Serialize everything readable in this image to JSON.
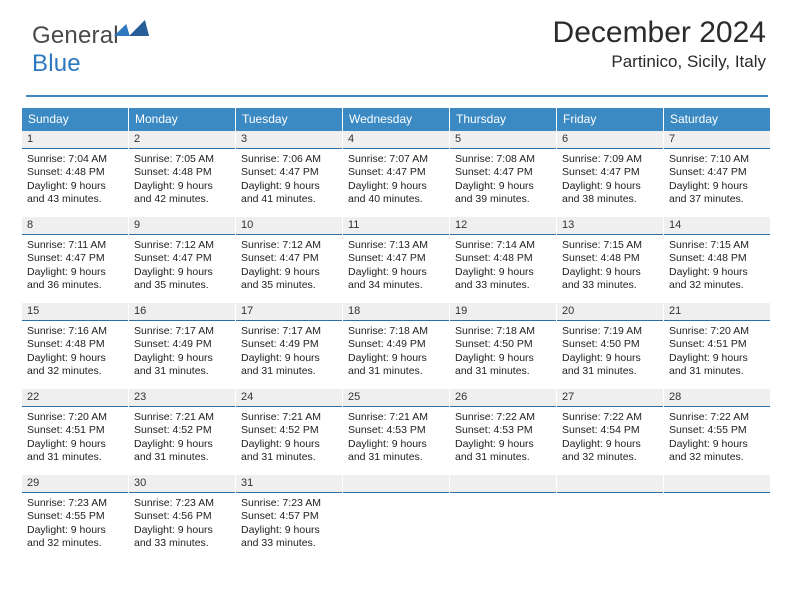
{
  "brand": {
    "part1": "General",
    "part2": "Blue"
  },
  "title": "December 2024",
  "location": "Partinico, Sicily, Italy",
  "style": {
    "header_bg": "#3b8ac4",
    "header_fg": "#ffffff",
    "dn_bg": "#efefef",
    "dn_border": "#2f6fa8",
    "page_bg": "#ffffff",
    "text": "#222222",
    "title_fontsize": 30,
    "dow_fontsize": 12,
    "body_fontsize": 10.5
  },
  "dow": [
    "Sunday",
    "Monday",
    "Tuesday",
    "Wednesday",
    "Thursday",
    "Friday",
    "Saturday"
  ],
  "weeks": [
    [
      {
        "n": "1",
        "sunrise": "Sunrise: 7:04 AM",
        "sunset": "Sunset: 4:48 PM",
        "day": "Daylight: 9 hours and 43 minutes."
      },
      {
        "n": "2",
        "sunrise": "Sunrise: 7:05 AM",
        "sunset": "Sunset: 4:48 PM",
        "day": "Daylight: 9 hours and 42 minutes."
      },
      {
        "n": "3",
        "sunrise": "Sunrise: 7:06 AM",
        "sunset": "Sunset: 4:47 PM",
        "day": "Daylight: 9 hours and 41 minutes."
      },
      {
        "n": "4",
        "sunrise": "Sunrise: 7:07 AM",
        "sunset": "Sunset: 4:47 PM",
        "day": "Daylight: 9 hours and 40 minutes."
      },
      {
        "n": "5",
        "sunrise": "Sunrise: 7:08 AM",
        "sunset": "Sunset: 4:47 PM",
        "day": "Daylight: 9 hours and 39 minutes."
      },
      {
        "n": "6",
        "sunrise": "Sunrise: 7:09 AM",
        "sunset": "Sunset: 4:47 PM",
        "day": "Daylight: 9 hours and 38 minutes."
      },
      {
        "n": "7",
        "sunrise": "Sunrise: 7:10 AM",
        "sunset": "Sunset: 4:47 PM",
        "day": "Daylight: 9 hours and 37 minutes."
      }
    ],
    [
      {
        "n": "8",
        "sunrise": "Sunrise: 7:11 AM",
        "sunset": "Sunset: 4:47 PM",
        "day": "Daylight: 9 hours and 36 minutes."
      },
      {
        "n": "9",
        "sunrise": "Sunrise: 7:12 AM",
        "sunset": "Sunset: 4:47 PM",
        "day": "Daylight: 9 hours and 35 minutes."
      },
      {
        "n": "10",
        "sunrise": "Sunrise: 7:12 AM",
        "sunset": "Sunset: 4:47 PM",
        "day": "Daylight: 9 hours and 35 minutes."
      },
      {
        "n": "11",
        "sunrise": "Sunrise: 7:13 AM",
        "sunset": "Sunset: 4:47 PM",
        "day": "Daylight: 9 hours and 34 minutes."
      },
      {
        "n": "12",
        "sunrise": "Sunrise: 7:14 AM",
        "sunset": "Sunset: 4:48 PM",
        "day": "Daylight: 9 hours and 33 minutes."
      },
      {
        "n": "13",
        "sunrise": "Sunrise: 7:15 AM",
        "sunset": "Sunset: 4:48 PM",
        "day": "Daylight: 9 hours and 33 minutes."
      },
      {
        "n": "14",
        "sunrise": "Sunrise: 7:15 AM",
        "sunset": "Sunset: 4:48 PM",
        "day": "Daylight: 9 hours and 32 minutes."
      }
    ],
    [
      {
        "n": "15",
        "sunrise": "Sunrise: 7:16 AM",
        "sunset": "Sunset: 4:48 PM",
        "day": "Daylight: 9 hours and 32 minutes."
      },
      {
        "n": "16",
        "sunrise": "Sunrise: 7:17 AM",
        "sunset": "Sunset: 4:49 PM",
        "day": "Daylight: 9 hours and 31 minutes."
      },
      {
        "n": "17",
        "sunrise": "Sunrise: 7:17 AM",
        "sunset": "Sunset: 4:49 PM",
        "day": "Daylight: 9 hours and 31 minutes."
      },
      {
        "n": "18",
        "sunrise": "Sunrise: 7:18 AM",
        "sunset": "Sunset: 4:49 PM",
        "day": "Daylight: 9 hours and 31 minutes."
      },
      {
        "n": "19",
        "sunrise": "Sunrise: 7:18 AM",
        "sunset": "Sunset: 4:50 PM",
        "day": "Daylight: 9 hours and 31 minutes."
      },
      {
        "n": "20",
        "sunrise": "Sunrise: 7:19 AM",
        "sunset": "Sunset: 4:50 PM",
        "day": "Daylight: 9 hours and 31 minutes."
      },
      {
        "n": "21",
        "sunrise": "Sunrise: 7:20 AM",
        "sunset": "Sunset: 4:51 PM",
        "day": "Daylight: 9 hours and 31 minutes."
      }
    ],
    [
      {
        "n": "22",
        "sunrise": "Sunrise: 7:20 AM",
        "sunset": "Sunset: 4:51 PM",
        "day": "Daylight: 9 hours and 31 minutes."
      },
      {
        "n": "23",
        "sunrise": "Sunrise: 7:21 AM",
        "sunset": "Sunset: 4:52 PM",
        "day": "Daylight: 9 hours and 31 minutes."
      },
      {
        "n": "24",
        "sunrise": "Sunrise: 7:21 AM",
        "sunset": "Sunset: 4:52 PM",
        "day": "Daylight: 9 hours and 31 minutes."
      },
      {
        "n": "25",
        "sunrise": "Sunrise: 7:21 AM",
        "sunset": "Sunset: 4:53 PM",
        "day": "Daylight: 9 hours and 31 minutes."
      },
      {
        "n": "26",
        "sunrise": "Sunrise: 7:22 AM",
        "sunset": "Sunset: 4:53 PM",
        "day": "Daylight: 9 hours and 31 minutes."
      },
      {
        "n": "27",
        "sunrise": "Sunrise: 7:22 AM",
        "sunset": "Sunset: 4:54 PM",
        "day": "Daylight: 9 hours and 32 minutes."
      },
      {
        "n": "28",
        "sunrise": "Sunrise: 7:22 AM",
        "sunset": "Sunset: 4:55 PM",
        "day": "Daylight: 9 hours and 32 minutes."
      }
    ],
    [
      {
        "n": "29",
        "sunrise": "Sunrise: 7:23 AM",
        "sunset": "Sunset: 4:55 PM",
        "day": "Daylight: 9 hours and 32 minutes."
      },
      {
        "n": "30",
        "sunrise": "Sunrise: 7:23 AM",
        "sunset": "Sunset: 4:56 PM",
        "day": "Daylight: 9 hours and 33 minutes."
      },
      {
        "n": "31",
        "sunrise": "Sunrise: 7:23 AM",
        "sunset": "Sunset: 4:57 PM",
        "day": "Daylight: 9 hours and 33 minutes."
      },
      {
        "empty": true
      },
      {
        "empty": true
      },
      {
        "empty": true
      },
      {
        "empty": true
      }
    ]
  ]
}
